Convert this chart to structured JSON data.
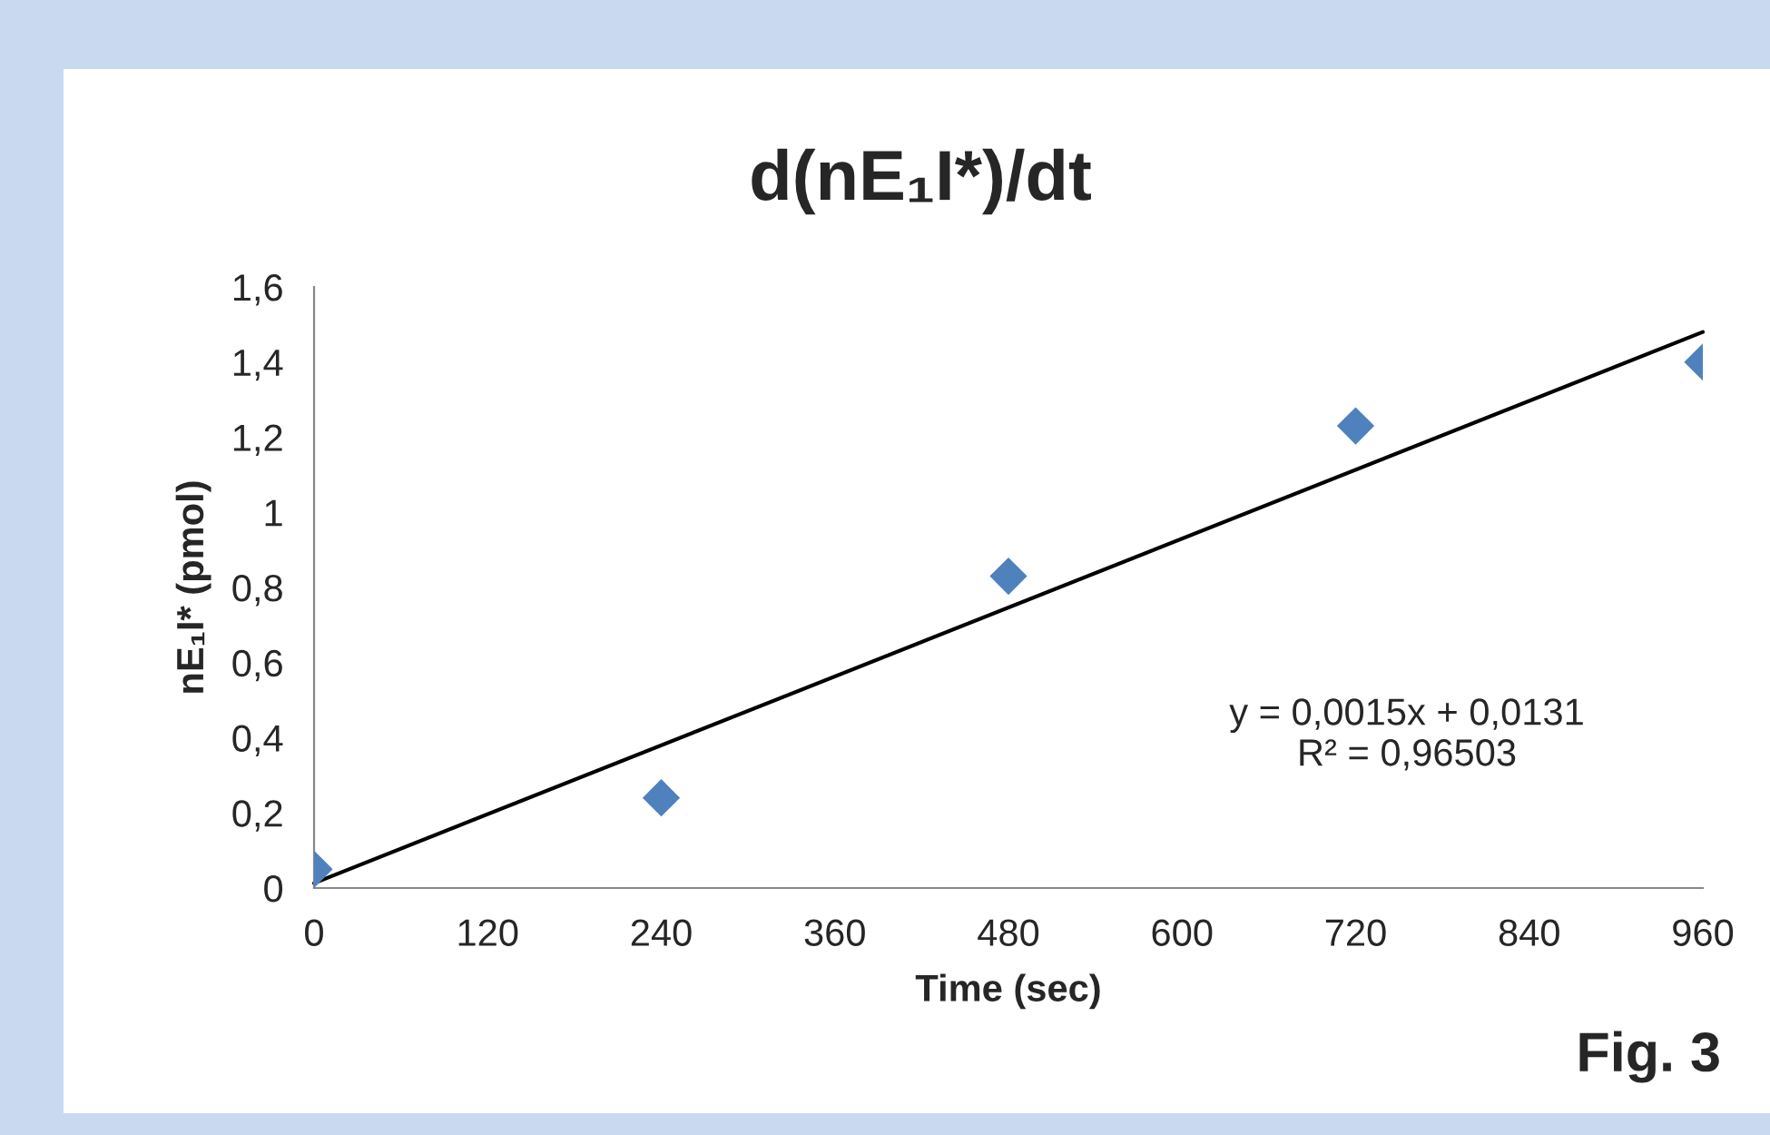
{
  "chart_data": {
    "type": "scatter",
    "title": "d(nE₁I*)/dt",
    "xlabel": "Time (sec)",
    "ylabel": "nE₁I* (pmol)",
    "series": [
      {
        "color": "#4f81bd",
        "marker": "diamond",
        "x": [
          0,
          240,
          480,
          720,
          960
        ],
        "values": [
          0.05,
          0.24,
          0.83,
          1.23,
          1.4
        ]
      },
      {
        "type": "line",
        "color": "#000000",
        "marker": "none",
        "line_style": "solid",
        "x": [
          0,
          960
        ],
        "values": [
          0.013,
          1.48
        ]
      }
    ],
    "xlim": [
      0,
      960
    ],
    "xticks": [
      0,
      120,
      240,
      360,
      480,
      600,
      720,
      840,
      960
    ],
    "ylim": [
      0,
      1.6
    ],
    "yticks": [
      0,
      {
        "value": 0.2,
        "label": "0,2"
      },
      {
        "value": 0.4,
        "label": "0,4"
      },
      {
        "value": 0.6,
        "label": "0,6"
      },
      {
        "value": 0.8,
        "label": "0,8"
      },
      1,
      {
        "value": 1.2,
        "label": "1,2"
      },
      {
        "value": 1.4,
        "label": "1,4"
      },
      {
        "value": 1.6,
        "label": "1,6"
      }
    ],
    "grid": false,
    "legend": false,
    "annotations": [
      "y = 0,0015x + 0,0131\nR² = 0,96503",
      "Fig. 3"
    ]
  }
}
